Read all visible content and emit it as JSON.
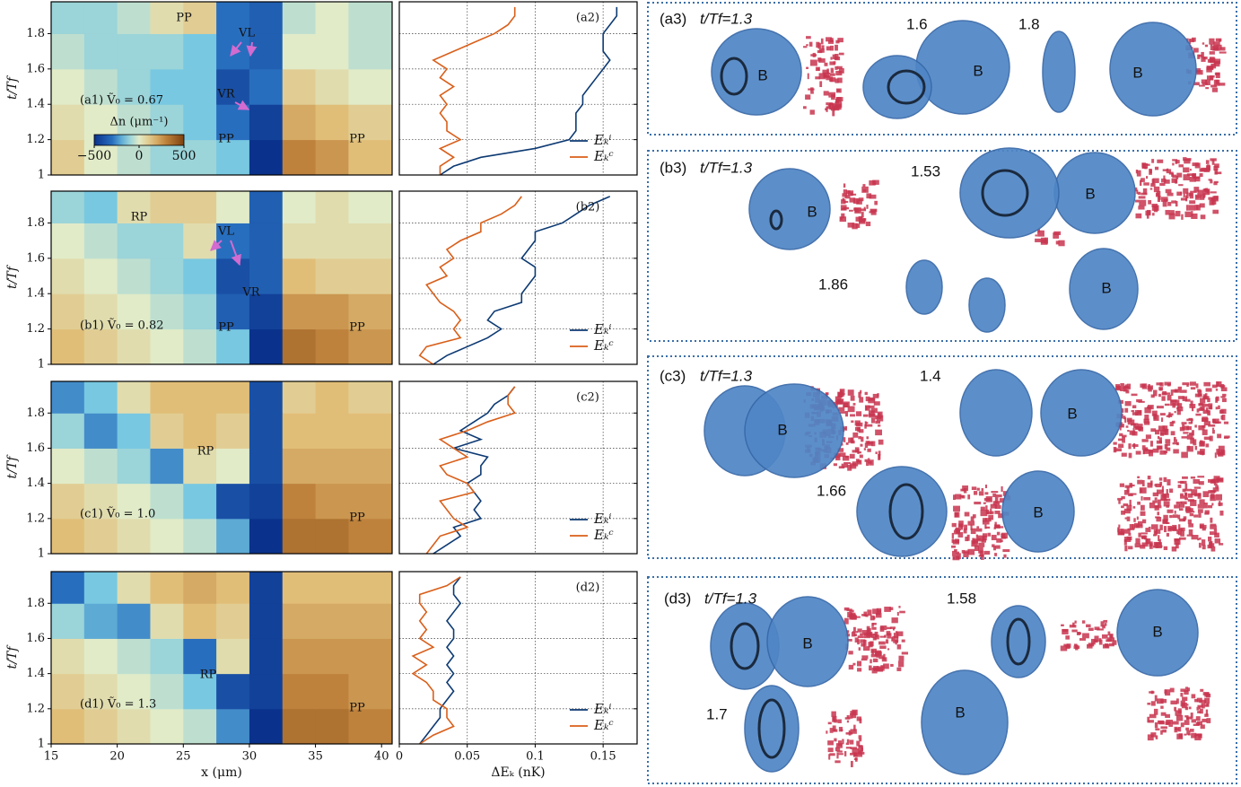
{
  "chart_data": [
    {
      "type": "heatmap",
      "label": "(a1) Ṽ₀ = 0.67",
      "annotations": [
        "PP",
        "VL",
        "VR",
        "PP",
        "PP"
      ],
      "ylabel": "t/Tf",
      "xlim": [
        15,
        40.8
      ],
      "ylim": [
        1,
        1.98
      ],
      "yticks": [
        1,
        1.2,
        1.4,
        1.6,
        1.8
      ],
      "xbins": [
        15,
        17.5,
        20,
        22.5,
        25,
        27.5,
        30,
        32.5,
        35,
        37.5,
        40
      ],
      "ybins": [
        1,
        1.2,
        1.4,
        1.6,
        1.8,
        1.98
      ],
      "values": [
        [
          100,
          0,
          -50,
          -100,
          -100,
          -150,
          -500,
          300,
          250,
          150
        ],
        [
          50,
          0,
          -50,
          -100,
          -150,
          -300,
          -450,
          200,
          150,
          100
        ],
        [
          0,
          -50,
          -100,
          -150,
          -150,
          -400,
          -300,
          100,
          50,
          0
        ],
        [
          -50,
          -100,
          -100,
          -100,
          -150,
          -300,
          -350,
          0,
          0,
          -50
        ],
        [
          -100,
          -100,
          -50,
          50,
          100,
          -300,
          -350,
          -50,
          0,
          -50
        ]
      ],
      "colorbar": {
        "label": "Δn (μm⁻¹)",
        "lim": [
          -500,
          500
        ],
        "ticks": [
          {
            "value": -500,
            "label": "−500"
          },
          0,
          500
        ]
      }
    },
    {
      "type": "line",
      "label": "(a2)",
      "xlim": [
        0,
        0.175
      ],
      "ylim": [
        1,
        1.98
      ],
      "xticks": [
        0,
        0.05,
        0.1,
        0.15
      ],
      "yticks": [
        1,
        1.2,
        1.4,
        1.6,
        1.8
      ],
      "grid": true,
      "xtick_labels": false,
      "y": [
        1,
        1.05,
        1.1,
        1.15,
        1.2,
        1.25,
        1.3,
        1.35,
        1.4,
        1.45,
        1.5,
        1.55,
        1.6,
        1.65,
        1.7,
        1.75,
        1.8,
        1.85,
        1.9,
        1.95
      ],
      "series": [
        {
          "name": "Eₖⁱ",
          "color": "#0d3a73",
          "values": [
            0.03,
            0.04,
            0.06,
            0.1,
            0.125,
            0.13,
            0.13,
            0.13,
            0.135,
            0.135,
            0.14,
            0.145,
            0.15,
            0.155,
            0.15,
            0.15,
            0.15,
            0.155,
            0.16,
            0.16
          ]
        },
        {
          "name": "Eₖᶜ",
          "color": "#d95f1a",
          "values": [
            0.03,
            0.03,
            0.04,
            0.03,
            0.045,
            0.035,
            0.035,
            0.03,
            0.035,
            0.03,
            0.04,
            0.03,
            0.035,
            0.025,
            0.04,
            0.055,
            0.07,
            0.08,
            0.085,
            0.085
          ]
        }
      ]
    },
    {
      "type": "heatmap",
      "label": "(b1) Ṽ₀ = 0.82",
      "annotations": [
        "RP",
        "VL",
        "VR",
        "PP",
        "PP"
      ],
      "ylabel": "t/Tf",
      "xlim": [
        15,
        40.8
      ],
      "ylim": [
        1,
        1.98
      ],
      "yticks": [
        1,
        1.2,
        1.4,
        1.6,
        1.8
      ],
      "xbins": [
        15,
        17.5,
        20,
        22.5,
        25,
        27.5,
        30,
        32.5,
        35,
        37.5,
        40
      ],
      "ybins": [
        1,
        1.2,
        1.4,
        1.6,
        1.8,
        1.98
      ],
      "values": [
        [
          150,
          100,
          50,
          0,
          -50,
          -150,
          -500,
          350,
          300,
          250
        ],
        [
          100,
          50,
          0,
          -50,
          -100,
          -350,
          -450,
          250,
          250,
          200
        ],
        [
          50,
          0,
          -50,
          -100,
          -150,
          -400,
          -350,
          150,
          100,
          100
        ],
        [
          0,
          -50,
          -100,
          -100,
          50,
          -300,
          -350,
          50,
          50,
          50
        ],
        [
          -100,
          -150,
          50,
          100,
          100,
          0,
          -350,
          0,
          50,
          0
        ]
      ]
    },
    {
      "type": "line",
      "label": "(b2)",
      "xlim": [
        0,
        0.175
      ],
      "ylim": [
        1,
        1.98
      ],
      "xticks": [
        0,
        0.05,
        0.1,
        0.15
      ],
      "yticks": [
        1,
        1.2,
        1.4,
        1.6,
        1.8
      ],
      "grid": true,
      "xtick_labels": false,
      "y": [
        1,
        1.05,
        1.1,
        1.15,
        1.2,
        1.25,
        1.3,
        1.35,
        1.4,
        1.45,
        1.5,
        1.55,
        1.6,
        1.65,
        1.7,
        1.75,
        1.8,
        1.85,
        1.9,
        1.95
      ],
      "series": [
        {
          "name": "Eₖⁱ",
          "color": "#0d3a73",
          "values": [
            0.025,
            0.035,
            0.05,
            0.065,
            0.075,
            0.065,
            0.07,
            0.09,
            0.09,
            0.095,
            0.1,
            0.1,
            0.09,
            0.095,
            0.1,
            0.1,
            0.12,
            0.13,
            0.14,
            0.155
          ]
        },
        {
          "name": "Eₖᶜ",
          "color": "#d95f1a",
          "values": [
            0.025,
            0.015,
            0.02,
            0.045,
            0.04,
            0.045,
            0.04,
            0.03,
            0.025,
            0.02,
            0.035,
            0.03,
            0.04,
            0.035,
            0.045,
            0.06,
            0.06,
            0.075,
            0.085,
            0.09
          ]
        }
      ]
    },
    {
      "type": "heatmap",
      "label": "(c1) Ṽ₀ = 1.0",
      "annotations": [
        "RP",
        "PP"
      ],
      "ylabel": "t/Tf",
      "xlim": [
        15,
        40.8
      ],
      "ylim": [
        1,
        1.98
      ],
      "yticks": [
        1,
        1.2,
        1.4,
        1.6,
        1.8
      ],
      "xbins": [
        15,
        17.5,
        20,
        22.5,
        25,
        27.5,
        30,
        32.5,
        35,
        37.5,
        40
      ],
      "ybins": [
        1,
        1.2,
        1.4,
        1.6,
        1.8,
        1.98
      ],
      "values": [
        [
          150,
          100,
          50,
          0,
          -50,
          -200,
          -500,
          350,
          350,
          300
        ],
        [
          100,
          50,
          0,
          -50,
          -150,
          -400,
          -450,
          300,
          250,
          250
        ],
        [
          0,
          -50,
          -100,
          -250,
          50,
          0,
          -400,
          200,
          200,
          200
        ],
        [
          -100,
          -250,
          -150,
          100,
          150,
          100,
          -400,
          150,
          150,
          150
        ],
        [
          -250,
          -150,
          50,
          150,
          150,
          150,
          -400,
          100,
          150,
          100
        ]
      ]
    },
    {
      "type": "line",
      "label": "(c2)",
      "xlim": [
        0,
        0.175
      ],
      "ylim": [
        1,
        1.98
      ],
      "xticks": [
        0,
        0.05,
        0.1,
        0.15
      ],
      "yticks": [
        1,
        1.2,
        1.4,
        1.6,
        1.8
      ],
      "grid": true,
      "xtick_labels": false,
      "y": [
        1,
        1.05,
        1.1,
        1.15,
        1.2,
        1.25,
        1.3,
        1.35,
        1.4,
        1.45,
        1.5,
        1.55,
        1.6,
        1.65,
        1.7,
        1.75,
        1.8,
        1.85,
        1.9,
        1.95
      ],
      "series": [
        {
          "name": "Eₖⁱ",
          "color": "#0d3a73",
          "values": [
            0.025,
            0.035,
            0.045,
            0.04,
            0.06,
            0.055,
            0.06,
            0.055,
            0.05,
            0.06,
            0.06,
            0.065,
            0.04,
            0.06,
            0.045,
            0.055,
            0.065,
            0.07,
            0.08,
            0.085
          ]
        },
        {
          "name": "Eₖᶜ",
          "color": "#d95f1a",
          "values": [
            0.02,
            0.025,
            0.03,
            0.05,
            0.04,
            0.035,
            0.03,
            0.055,
            0.05,
            0.035,
            0.03,
            0.05,
            0.04,
            0.03,
            0.05,
            0.065,
            0.085,
            0.08,
            0.08,
            0.085
          ]
        }
      ]
    },
    {
      "type": "heatmap",
      "label": "(d1) Ṽ₀ = 1.3",
      "annotations": [
        "RP",
        "PP"
      ],
      "ylabel": "t/Tf",
      "xlabel": "x (μm)",
      "xlim": [
        15,
        40.8
      ],
      "ylim": [
        1,
        1.98
      ],
      "xticks": [
        15,
        20,
        25,
        30,
        35,
        40
      ],
      "yticks": [
        1,
        1.2,
        1.4,
        1.6,
        1.8
      ],
      "xbins": [
        15,
        17.5,
        20,
        22.5,
        25,
        27.5,
        30,
        32.5,
        35,
        37.5,
        40
      ],
      "ybins": [
        1,
        1.2,
        1.4,
        1.6,
        1.8,
        1.98
      ],
      "values": [
        [
          150,
          100,
          50,
          0,
          -50,
          -250,
          -500,
          350,
          350,
          300
        ],
        [
          100,
          50,
          0,
          -50,
          -150,
          -400,
          -450,
          300,
          300,
          250
        ],
        [
          50,
          0,
          -50,
          -100,
          -300,
          50,
          -450,
          250,
          250,
          250
        ],
        [
          -100,
          -200,
          -250,
          50,
          150,
          100,
          -450,
          200,
          200,
          200
        ],
        [
          -300,
          -150,
          50,
          150,
          200,
          150,
          -450,
          150,
          150,
          150
        ]
      ]
    },
    {
      "type": "line",
      "label": "(d2)",
      "xlabel": "ΔEₖ (nK)",
      "xlim": [
        0,
        0.175
      ],
      "ylim": [
        1,
        1.98
      ],
      "xticks": [
        0,
        0.05,
        0.1,
        0.15
      ],
      "yticks": [
        1,
        1.2,
        1.4,
        1.6,
        1.8
      ],
      "grid": true,
      "xtick_labels": true,
      "y": [
        1,
        1.05,
        1.1,
        1.15,
        1.2,
        1.25,
        1.3,
        1.35,
        1.4,
        1.45,
        1.5,
        1.55,
        1.6,
        1.65,
        1.7,
        1.75,
        1.8,
        1.85,
        1.9,
        1.95
      ],
      "series": [
        {
          "name": "Eₖⁱ",
          "color": "#0d3a73",
          "values": [
            0.015,
            0.02,
            0.025,
            0.03,
            0.03,
            0.035,
            0.04,
            0.035,
            0.04,
            0.035,
            0.04,
            0.035,
            0.04,
            0.04,
            0.035,
            0.04,
            0.045,
            0.04,
            0.04,
            0.045
          ]
        },
        {
          "name": "Eₖᶜ",
          "color": "#d95f1a",
          "values": [
            0.015,
            0.025,
            0.04,
            0.035,
            0.035,
            0.025,
            0.025,
            0.02,
            0.01,
            0.02,
            0.01,
            0.025,
            0.015,
            0.02,
            0.015,
            0.02,
            0.015,
            0.015,
            0.035,
            0.045
          ]
        }
      ]
    }
  ],
  "panels": [
    {
      "label": "(a3)",
      "times": [
        "t/Tf=1.3",
        "1.6",
        "1.8"
      ],
      "marker": "B"
    },
    {
      "label": "(b3)",
      "times": [
        "t/Tf=1.3",
        "1.53",
        "1.86"
      ],
      "marker": "B"
    },
    {
      "label": "(c3)",
      "times": [
        "t/Tf=1.3",
        "1.4",
        "1.66"
      ],
      "marker": "B"
    },
    {
      "label": "(d3)",
      "times": [
        "t/Tf=1.3",
        "1.58",
        "1.7"
      ],
      "marker": "B"
    }
  ]
}
